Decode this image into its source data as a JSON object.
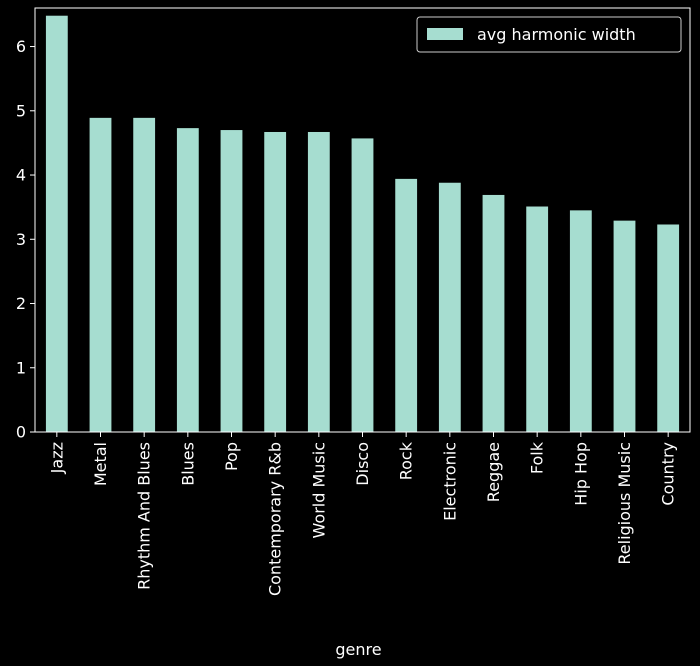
{
  "chart_data": {
    "type": "bar",
    "title": "",
    "xlabel": "genre",
    "ylabel": "",
    "categories": [
      "Jazz",
      "Metal",
      "Rhythm And Blues",
      "Blues",
      "Pop",
      "Contemporary R&b",
      "World Music",
      "Disco",
      "Rock",
      "Electronic",
      "Reggae",
      "Folk",
      "Hip Hop",
      "Religious Music",
      "Country"
    ],
    "series": [
      {
        "name": "avg harmonic width",
        "values": [
          6.48,
          4.89,
          4.89,
          4.73,
          4.7,
          4.67,
          4.67,
          4.57,
          3.94,
          3.88,
          3.69,
          3.51,
          3.45,
          3.29,
          3.23
        ],
        "color": "#a6ddd0"
      }
    ],
    "ylim": [
      0,
      6.6
    ],
    "yticks": [
      0,
      1,
      2,
      3,
      4,
      5,
      6
    ],
    "grid": false,
    "legend_position": "top-right",
    "background_color": "#000000",
    "axis_color": "#ffffff"
  }
}
